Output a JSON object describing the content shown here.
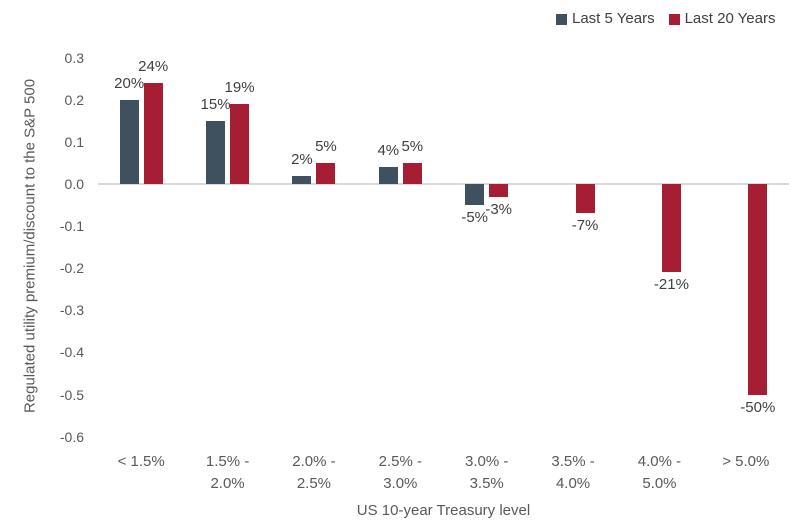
{
  "chart_data": {
    "type": "bar",
    "title": "",
    "xlabel": "US 10-year Treasury level",
    "ylabel": "Regulated utility premium/discount to the S&P 500",
    "categories": [
      "< 1.5%",
      "1.5% -\n2.0%",
      "2.0% -\n2.5%",
      "2.5% -\n3.0%",
      "3.0% -\n3.5%",
      "3.5% -\n4.0%",
      "4.0% -\n5.0%",
      "> 5.0%"
    ],
    "series": [
      {
        "name": "Last 5 Years",
        "color": "#3F515E",
        "values": [
          0.2,
          0.15,
          0.02,
          0.04,
          -0.05,
          null,
          null,
          null
        ],
        "labels": [
          "20%",
          "15%",
          "2%",
          "4%",
          "-5%",
          "",
          "",
          ""
        ]
      },
      {
        "name": "Last 20 Years",
        "color": "#A51E33",
        "values": [
          0.24,
          0.19,
          0.05,
          0.05,
          -0.03,
          -0.07,
          -0.21,
          -0.5
        ],
        "labels": [
          "24%",
          "19%",
          "5%",
          "5%",
          "-3%",
          "-7%",
          "-21%",
          "-50%"
        ]
      }
    ],
    "yticks": [
      "0.3",
      "0.2",
      "0.1",
      "0.0",
      "-0.1",
      "-0.2",
      "-0.3",
      "-0.4",
      "-0.5",
      "-0.6"
    ],
    "ylim": [
      -0.6,
      0.3
    ],
    "grid": false,
    "legend_position": "top-right",
    "colors": {
      "zero_line": "#D9D9D9",
      "tick_text": "#595959",
      "data_label_text": "#404040"
    }
  }
}
